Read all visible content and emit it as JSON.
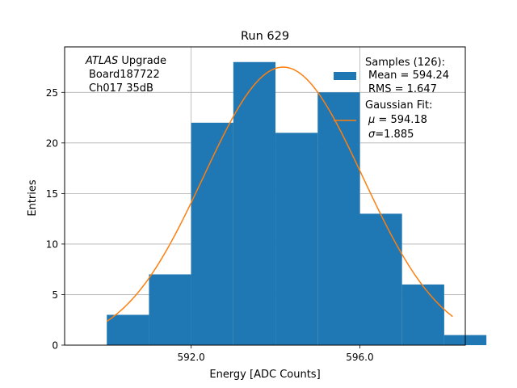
{
  "chart_data": {
    "type": "bar",
    "title": "Run 629",
    "xlabel": "Energy [ADC Counts]",
    "ylabel": "Entries",
    "xlim": [
      589.0,
      598.5
    ],
    "ylim": [
      0,
      29.5
    ],
    "xticks": [
      592.0,
      596.0
    ],
    "xtick_labels": [
      "592.0",
      "596.0"
    ],
    "yticks": [
      0,
      5,
      10,
      15,
      20,
      25
    ],
    "grid": true,
    "histogram": {
      "name": "Samples",
      "bin_edges": [
        590,
        591,
        592,
        593,
        594,
        595,
        596,
        597,
        598,
        599
      ],
      "counts": [
        3,
        7,
        22,
        28,
        21,
        25,
        13,
        6,
        1
      ],
      "color": "#1f77b4"
    },
    "fit": {
      "name": "Gaussian Fit",
      "amplitude": 27.5,
      "mu": 594.18,
      "sigma": 1.885,
      "x_range": [
        590.0,
        598.2
      ],
      "color": "#ff7f0e"
    },
    "annotation": {
      "italic": "ATLAS",
      "line1_rest": " Upgrade",
      "line2": "Board187722",
      "line3": "Ch017 35dB"
    },
    "legend": {
      "position": "top-right",
      "samples_header": "Samples (126):",
      "samples_mean": "Mean = 594.24",
      "samples_rms": "RMS = 1.647",
      "fit_header": "Gaussian Fit:",
      "fit_mu_symbol": "μ",
      "fit_mu_value": " = 594.18",
      "fit_sigma_symbol": "σ",
      "fit_sigma_value": "=1.885"
    }
  }
}
